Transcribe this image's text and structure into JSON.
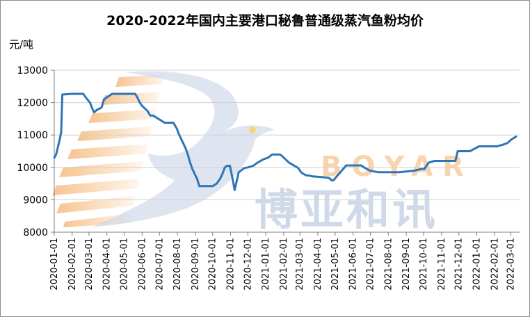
{
  "chart_data": {
    "type": "line",
    "title": "2020-2022年国内主要港口秘鲁普通级蒸汽鱼粉均价",
    "ylabel": "元/吨",
    "xlabel": "",
    "ylim": [
      8000,
      13000
    ],
    "yticks": [
      8000,
      9000,
      10000,
      11000,
      12000,
      13000
    ],
    "grid": "horizontal",
    "legend": "none",
    "line_color": "#2e75b6",
    "xtick_labels": [
      "2020-01-01",
      "2020-02-01",
      "2020-03-01",
      "2020-04-01",
      "2020-05-01",
      "2020-06-01",
      "2020-07-01",
      "2020-08-01",
      "2020-09-01",
      "2020-10-01",
      "2020-11-01",
      "2020-12-01",
      "2021-01-01",
      "2021-02-01",
      "2021-03-01",
      "2021-04-01",
      "2021-05-01",
      "2021-06-01",
      "2021-07-01",
      "2021-08-01",
      "2021-09-01",
      "2021-10-01",
      "2021-11-01",
      "2021-12-01",
      "2022-01-01",
      "2022-02-01",
      "2022-03-01"
    ],
    "x": [
      "2020-01-01",
      "2020-01-03",
      "2020-01-05",
      "2020-01-07",
      "2020-01-09",
      "2020-01-11",
      "2020-01-13",
      "2020-01-15",
      "2020-02-01",
      "2020-02-20",
      "2020-02-27",
      "2020-03-03",
      "2020-03-06",
      "2020-03-10",
      "2020-03-15",
      "2020-03-20",
      "2020-03-23",
      "2020-03-27",
      "2020-04-10",
      "2020-05-20",
      "2020-05-24",
      "2020-05-28",
      "2020-06-01",
      "2020-06-10",
      "2020-06-15",
      "2020-06-20",
      "2020-07-10",
      "2020-07-15",
      "2020-07-20",
      "2020-07-25",
      "2020-07-31",
      "2020-08-03",
      "2020-08-07",
      "2020-08-11",
      "2020-08-15",
      "2020-08-19",
      "2020-08-23",
      "2020-08-27",
      "2020-08-31",
      "2020-09-04",
      "2020-09-08",
      "2020-09-15",
      "2020-10-01",
      "2020-10-08",
      "2020-10-14",
      "2020-10-18",
      "2020-10-22",
      "2020-10-26",
      "2020-10-31",
      "2020-11-05",
      "2020-11-08",
      "2020-11-12",
      "2020-11-15",
      "2020-11-25",
      "2020-12-01",
      "2020-12-10",
      "2020-12-18",
      "2020-12-28",
      "2021-01-05",
      "2021-01-12",
      "2021-01-20",
      "2021-01-26",
      "2021-02-01",
      "2021-02-10",
      "2021-02-26",
      "2021-03-03",
      "2021-03-07",
      "2021-03-11",
      "2021-03-15",
      "2021-03-19",
      "2021-03-23",
      "2021-04-08",
      "2021-04-20",
      "2021-04-25",
      "2021-04-28",
      "2021-05-20",
      "2021-06-05",
      "2021-06-15",
      "2021-06-20",
      "2021-06-25",
      "2021-06-30",
      "2021-07-15",
      "2021-08-15",
      "2021-08-20",
      "2021-09-15",
      "2021-09-27",
      "2021-10-02",
      "2021-10-10",
      "2021-10-20",
      "2021-11-10",
      "2021-11-25",
      "2021-11-29",
      "2021-12-20",
      "2022-01-05",
      "2022-01-20",
      "2022-02-05",
      "2022-02-15",
      "2022-02-23",
      "2022-03-01",
      "2022-03-05",
      "2022-03-10"
    ],
    "series": [
      {
        "values": [
          10300,
          10350,
          10450,
          10600,
          10750,
          10900,
          11100,
          12250,
          12270,
          12270,
          12100,
          12000,
          11850,
          11700,
          11780,
          11820,
          11850,
          12100,
          12270,
          12270,
          12150,
          12000,
          11900,
          11750,
          11600,
          11600,
          11380,
          11380,
          11380,
          11380,
          11200,
          11050,
          10900,
          10750,
          10600,
          10400,
          10150,
          9950,
          9800,
          9650,
          9420,
          9420,
          9420,
          9500,
          9650,
          9800,
          10000,
          10050,
          10050,
          9600,
          9300,
          9600,
          9850,
          9980,
          10000,
          10050,
          10150,
          10250,
          10300,
          10400,
          10400,
          10400,
          10300,
          10150,
          9980,
          9850,
          9800,
          9760,
          9750,
          9740,
          9720,
          9700,
          9680,
          9600,
          9600,
          10060,
          10060,
          10060,
          10000,
          9950,
          9900,
          9850,
          9850,
          9850,
          9900,
          9950,
          9950,
          10150,
          10200,
          10200,
          10200,
          10500,
          10500,
          10650,
          10650,
          10650,
          10700,
          10750,
          10850,
          10900,
          10950
        ]
      }
    ]
  },
  "watermark": {
    "brand_en": "BOYAR",
    "brand_cn": "博亚和讯"
  }
}
